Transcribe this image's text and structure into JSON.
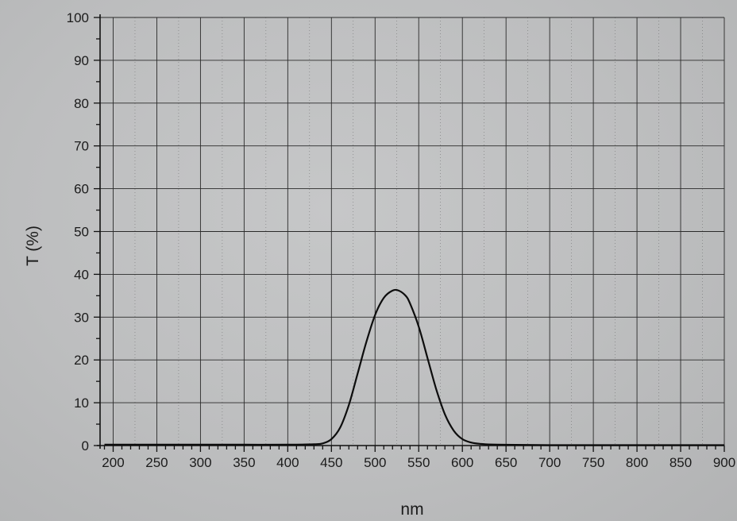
{
  "chart_data": {
    "type": "line",
    "title": "",
    "xlabel": "nm",
    "ylabel": "T (%)",
    "xlim": [
      185,
      900
    ],
    "ylim": [
      0,
      100
    ],
    "x_ticks": [
      200,
      250,
      300,
      350,
      400,
      450,
      500,
      550,
      600,
      650,
      700,
      750,
      800,
      850,
      900
    ],
    "y_ticks": [
      0,
      10,
      20,
      30,
      40,
      50,
      60,
      70,
      80,
      90,
      100
    ],
    "grid": true,
    "series": [
      {
        "x": [
          190,
          250,
          300,
          350,
          400,
          430,
          440,
          450,
          460,
          470,
          480,
          490,
          500,
          510,
          520,
          527,
          535,
          540,
          550,
          560,
          570,
          580,
          590,
          600,
          610,
          620,
          640,
          700,
          800,
          900
        ],
        "y": [
          0.2,
          0.2,
          0.2,
          0.2,
          0.2,
          0.3,
          0.5,
          1.5,
          4.2,
          9.5,
          16.8,
          24.2,
          30.5,
          34.5,
          36.2,
          36.2,
          35.0,
          33.2,
          27.8,
          20.5,
          13.2,
          7.3,
          3.5,
          1.5,
          0.7,
          0.4,
          0.2,
          0.1,
          0.1,
          0.1
        ]
      }
    ]
  }
}
